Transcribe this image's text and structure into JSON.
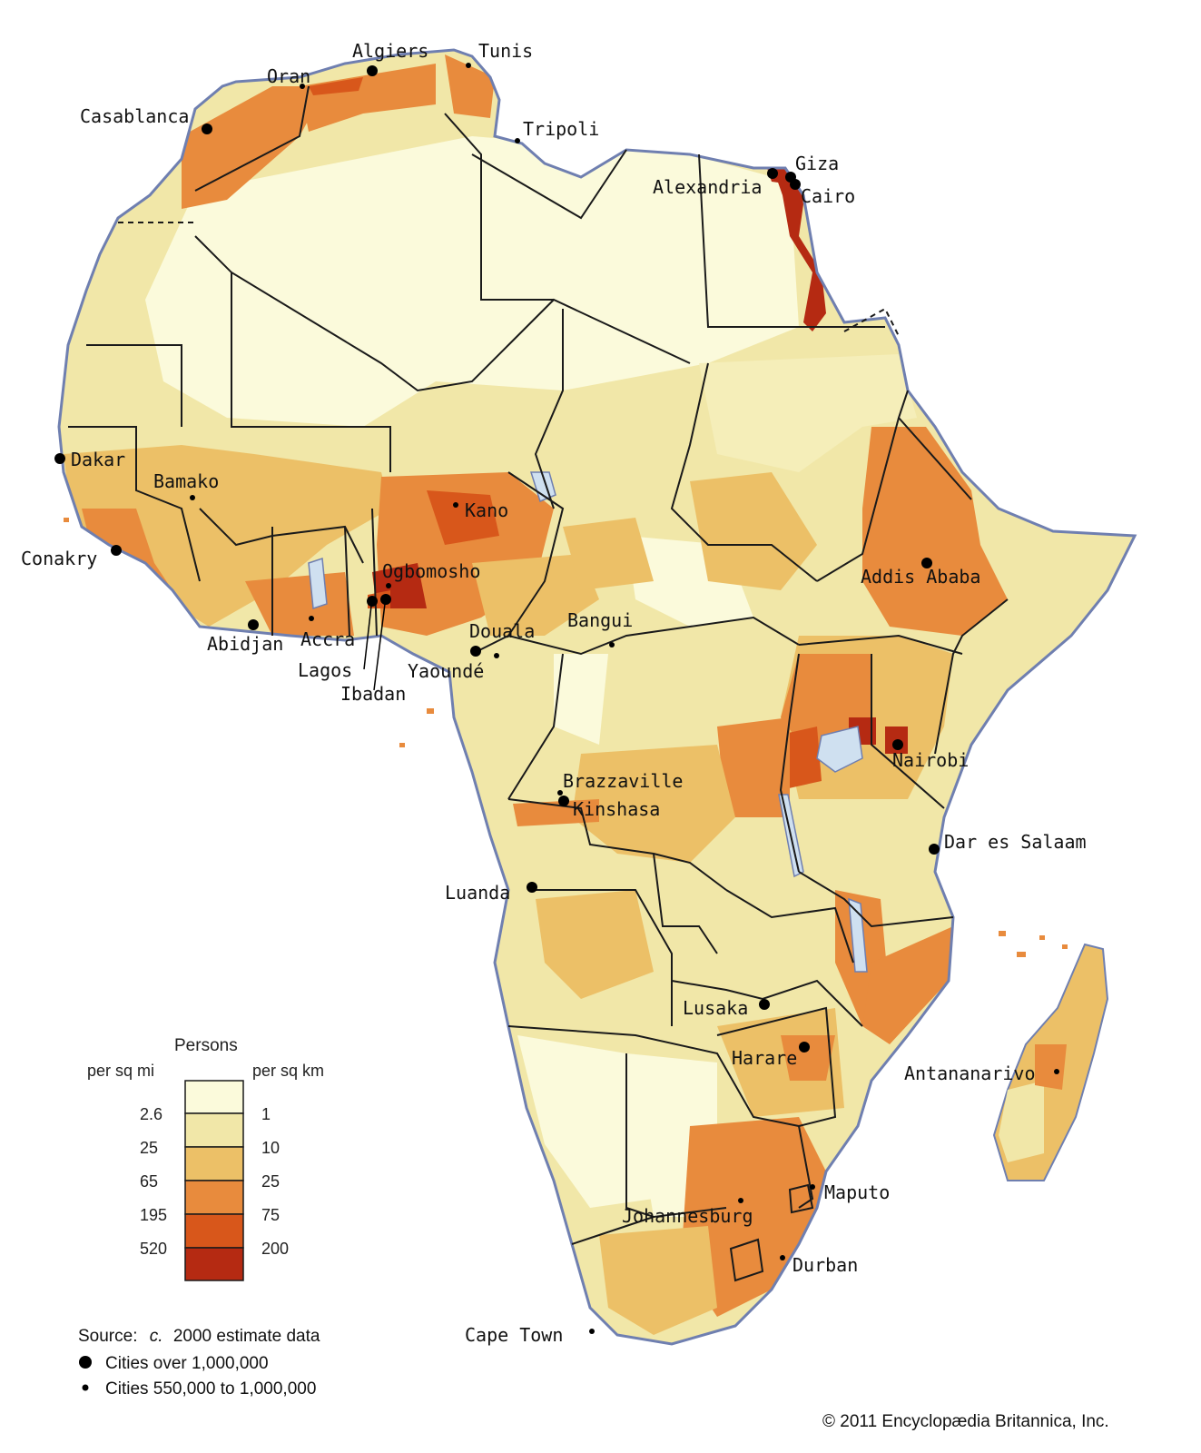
{
  "colors": {
    "ocean": "#ffffff",
    "coast": "#6f7fb0",
    "border": "#1a1a1a",
    "water": "#cfe0f0",
    "classes": [
      "#fbfadb",
      "#f1e7a8",
      "#ecc067",
      "#e88b3d",
      "#d8571b",
      "#b52a12"
    ]
  },
  "cities": {
    "major": [
      {
        "name": "Algiers",
        "dot": "algiers"
      },
      {
        "name": "Casablanca",
        "dot": "casablanca"
      },
      {
        "name": "Alexandria",
        "dot": "alexandria"
      },
      {
        "name": "Giza",
        "dot": "giza"
      },
      {
        "name": "Cairo",
        "dot": "cairo"
      },
      {
        "name": "Dakar",
        "dot": "dakar"
      },
      {
        "name": "Conakry",
        "dot": "conakry"
      },
      {
        "name": "Abidjan",
        "dot": "abidjan"
      },
      {
        "name": "Lagos",
        "dot": "lagos"
      },
      {
        "name": "Ibadan",
        "dot": "ibadan"
      },
      {
        "name": "Douala",
        "dot": "douala"
      },
      {
        "name": "Kinshasa",
        "dot": "kinshasa"
      },
      {
        "name": "Addis Ababa",
        "dot": "addis"
      },
      {
        "name": "Nairobi",
        "dot": "nairobi"
      },
      {
        "name": "Dar es Salaam",
        "dot": "dar"
      },
      {
        "name": "Luanda",
        "dot": "luanda"
      },
      {
        "name": "Lusaka",
        "dot": "lusaka"
      },
      {
        "name": "Harare",
        "dot": "harare"
      }
    ],
    "medium": [
      {
        "name": "Oran"
      },
      {
        "name": "Tunis"
      },
      {
        "name": "Tripoli"
      },
      {
        "name": "Bamako"
      },
      {
        "name": "Kano"
      },
      {
        "name": "Ogbomosho"
      },
      {
        "name": "Accra"
      },
      {
        "name": "Yaoundé"
      },
      {
        "name": "Bangui"
      },
      {
        "name": "Brazzaville"
      },
      {
        "name": "Antananarivo"
      },
      {
        "name": "Maputo"
      },
      {
        "name": "Johannesburg"
      },
      {
        "name": "Durban"
      },
      {
        "name": "Cape Town"
      }
    ]
  },
  "legend": {
    "title": "Persons",
    "left_unit": "per sq mi",
    "right_unit": "per sq km",
    "left_values": [
      "2.6",
      "25",
      "65",
      "195",
      "520"
    ],
    "right_values": [
      "1",
      "10",
      "25",
      "75",
      "200"
    ]
  },
  "notes": {
    "source_prefix": "Source:",
    "source_c": "c.",
    "source_rest": "2000 estimate data",
    "major_label": "Cities over 1,000,000",
    "medium_label": "Cities 550,000 to 1,000,000",
    "copyright": "© 2011 Encyclopædia Britannica, Inc."
  }
}
